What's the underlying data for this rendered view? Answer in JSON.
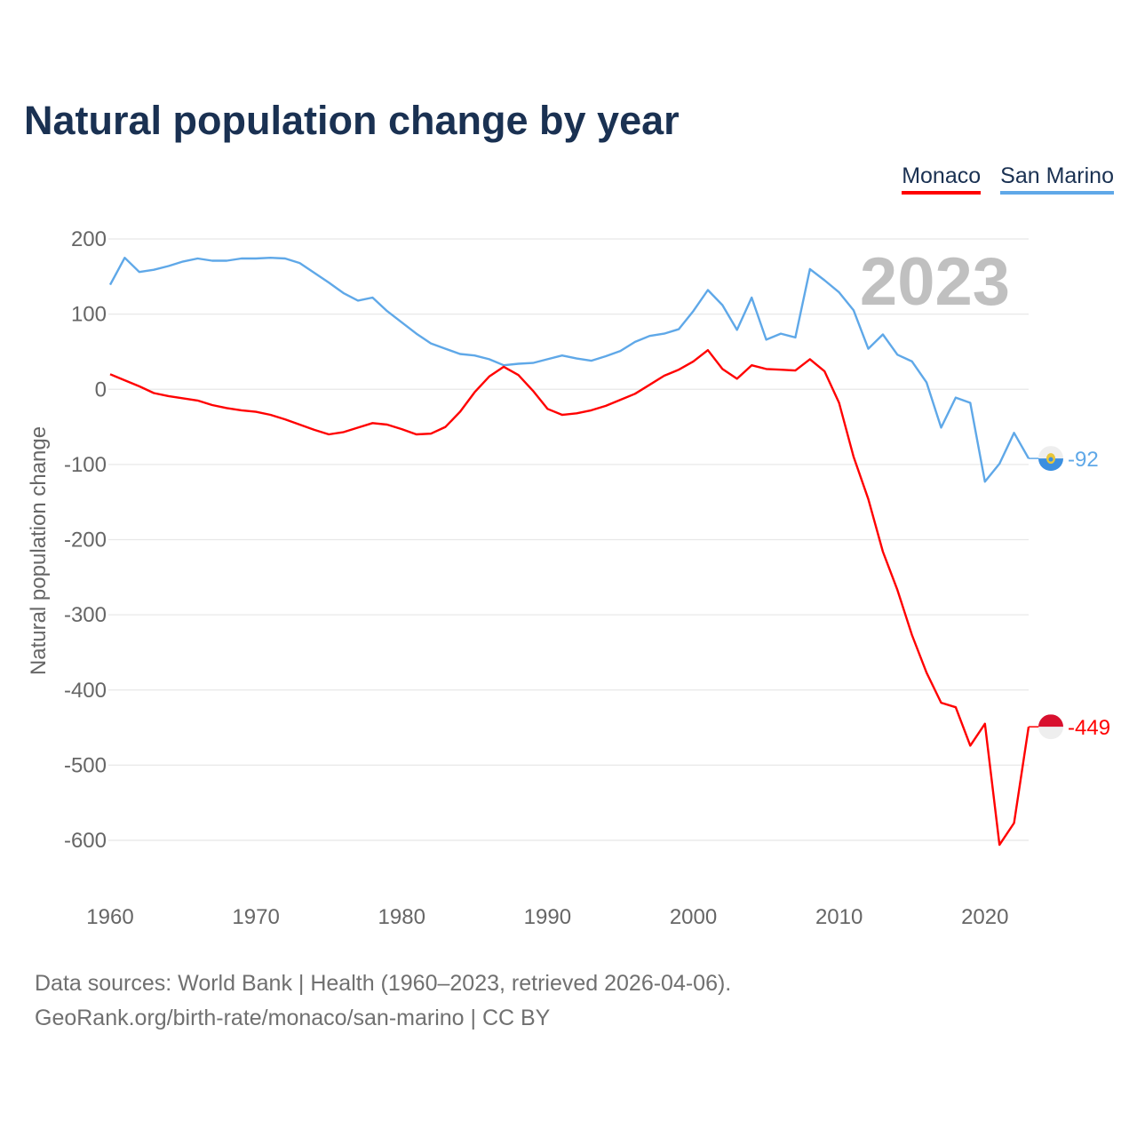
{
  "title": "Natural population change by year",
  "legend": [
    {
      "label": "Monaco",
      "color": "#ff0000"
    },
    {
      "label": "San Marino",
      "color": "#5fa8e8"
    }
  ],
  "source_lines": [
    "Data sources: World Bank | Health (1960–2023, retrieved 2026-04-06).",
    "GeoRank.org/birth-rate/monaco/san-marino | CC BY"
  ],
  "chart_data": {
    "type": "line",
    "title": "Natural population change by year",
    "xlabel": "",
    "ylabel": "Natural population change",
    "year_watermark": "2023",
    "xlim": [
      1960,
      2023
    ],
    "ylim": [
      -600,
      200
    ],
    "xticks": [
      "1960",
      "1970",
      "1980",
      "1990",
      "2000",
      "2010",
      "2020"
    ],
    "yticks": [
      "200",
      "100",
      "0",
      "-100",
      "-200",
      "-300",
      "-400",
      "-500",
      "-600"
    ],
    "grid": true,
    "legend_position": "top-right",
    "x_start": 1960,
    "series": [
      {
        "name": "Monaco",
        "color": "#ff0000",
        "end_label": "-449",
        "values": [
          20,
          12,
          4,
          -5,
          -9,
          -12,
          -15,
          -21,
          -25,
          -28,
          -30,
          -34,
          -40,
          -47,
          -54,
          -60,
          -57,
          -51,
          -45,
          -47,
          -53,
          -60,
          -59,
          -50,
          -30,
          -4,
          17,
          30,
          19,
          -2,
          -26,
          -34,
          -32,
          -28,
          -22,
          -14,
          -6,
          6,
          18,
          26,
          37,
          52,
          27,
          14,
          32,
          27,
          26,
          25,
          40,
          24,
          -18,
          -90,
          -146,
          -216,
          -267,
          -327,
          -377,
          -417,
          -423,
          -474,
          -445,
          -606,
          -577,
          -449
        ]
      },
      {
        "name": "San Marino",
        "color": "#5fa8e8",
        "end_label": "-92",
        "values": [
          139,
          175,
          156,
          159,
          164,
          170,
          174,
          171,
          171,
          174,
          174,
          175,
          174,
          168,
          155,
          142,
          128,
          118,
          122,
          104,
          89,
          74,
          61,
          54,
          47,
          45,
          40,
          32,
          34,
          35,
          40,
          45,
          41,
          38,
          44,
          51,
          63,
          71,
          74,
          80,
          104,
          132,
          112,
          79,
          122,
          66,
          74,
          69,
          160,
          145,
          129,
          105,
          54,
          73,
          46,
          37,
          9,
          -51,
          -11,
          -18,
          -123,
          -99,
          -58,
          -92
        ]
      }
    ]
  }
}
